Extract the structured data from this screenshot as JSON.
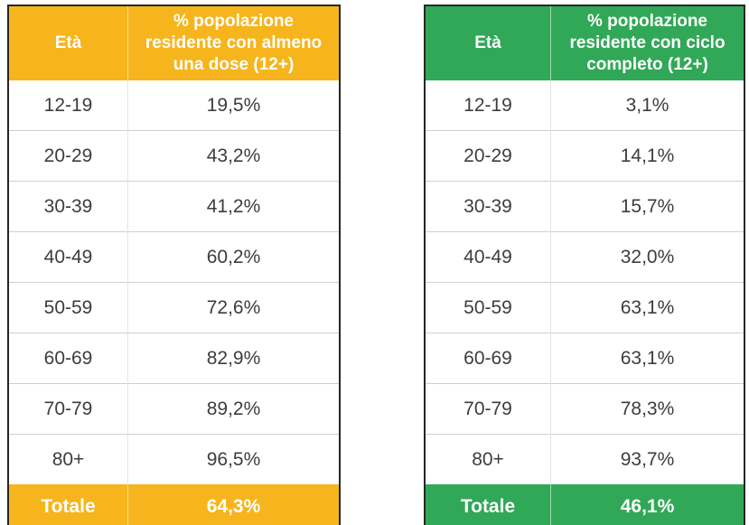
{
  "page": {
    "background_color": "#ffffff"
  },
  "tables": [
    {
      "name": "almeno-una-dose",
      "accent_color": "#F6B51C",
      "header": {
        "age_label": "Età",
        "value_label": "% popolazione residente con almeno una dose (12+)"
      },
      "rows": [
        {
          "age": "12-19",
          "value": "19,5%"
        },
        {
          "age": "20-29",
          "value": "43,2%"
        },
        {
          "age": "30-39",
          "value": "41,2%"
        },
        {
          "age": "40-49",
          "value": "60,2%"
        },
        {
          "age": "50-59",
          "value": "72,6%"
        },
        {
          "age": "60-69",
          "value": "82,9%"
        },
        {
          "age": "70-79",
          "value": "89,2%"
        },
        {
          "age": "80+",
          "value": "96,5%"
        }
      ],
      "total": {
        "label": "Totale",
        "value": "64,3%"
      }
    },
    {
      "name": "ciclo-completo",
      "accent_color": "#31A857",
      "header": {
        "age_label": "Età",
        "value_label": "% popolazione residente con ciclo completo (12+)"
      },
      "rows": [
        {
          "age": "12-19",
          "value": "3,1%"
        },
        {
          "age": "20-29",
          "value": "14,1%"
        },
        {
          "age": "30-39",
          "value": "15,7%"
        },
        {
          "age": "40-49",
          "value": "32,0%"
        },
        {
          "age": "50-59",
          "value": "63,1%"
        },
        {
          "age": "60-69",
          "value": "63,1%"
        },
        {
          "age": "70-79",
          "value": "78,3%"
        },
        {
          "age": "80+",
          "value": "93,7%"
        }
      ],
      "total": {
        "label": "Totale",
        "value": "46,1%"
      }
    }
  ],
  "chart_data": [
    {
      "type": "table",
      "title": "% popolazione residente con almeno una dose (12+)",
      "categories": [
        "12-19",
        "20-29",
        "30-39",
        "40-49",
        "50-59",
        "60-69",
        "70-79",
        "80+",
        "Totale"
      ],
      "values": [
        19.5,
        43.2,
        41.2,
        60.2,
        72.6,
        82.9,
        89.2,
        96.5,
        64.3
      ],
      "unit": "%",
      "accent_color": "#F6B51C"
    },
    {
      "type": "table",
      "title": "% popolazione residente con ciclo completo (12+)",
      "categories": [
        "12-19",
        "20-29",
        "30-39",
        "40-49",
        "50-59",
        "60-69",
        "70-79",
        "80+",
        "Totale"
      ],
      "values": [
        3.1,
        14.1,
        15.7,
        32.0,
        63.1,
        63.1,
        78.3,
        93.7,
        46.1
      ],
      "unit": "%",
      "accent_color": "#31A857"
    }
  ]
}
